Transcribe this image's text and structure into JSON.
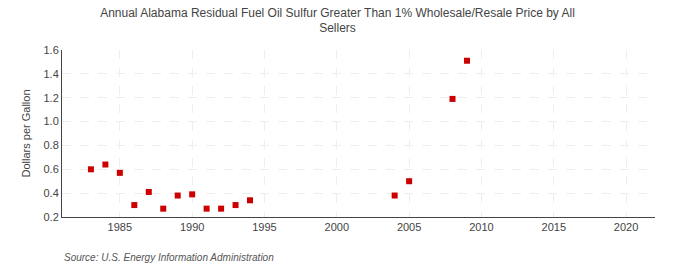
{
  "chart_data": {
    "type": "scatter",
    "title": "Annual Alabama Residual Fuel Oil Sulfur Greater Than 1% Wholesale/Resale Price by All\nSellers",
    "ylabel": "Dollars per Gallon",
    "annotations": [
      "Source: U.S. Energy Information Administration"
    ],
    "x": [
      1983,
      1984,
      1985,
      1986,
      1987,
      1988,
      1989,
      1990,
      1991,
      1992,
      1993,
      1994,
      2004,
      2005,
      2008,
      2009
    ],
    "values": [
      0.6,
      0.64,
      0.57,
      0.3,
      0.41,
      0.27,
      0.38,
      0.39,
      0.27,
      0.27,
      0.3,
      0.34,
      0.38,
      0.5,
      1.19,
      1.51
    ],
    "color": "#cc0000",
    "marker": "square",
    "xlim": [
      1981,
      2022
    ],
    "xticks": [
      1985,
      1990,
      1995,
      2000,
      2005,
      2010,
      2015,
      2020
    ],
    "ylim": [
      0.2,
      1.6
    ],
    "yticks": [
      0.2,
      0.4,
      0.6,
      0.8,
      {
        "value": 1.0,
        "label": "1.0"
      },
      1.2,
      1.4,
      1.6
    ],
    "grid": true
  }
}
